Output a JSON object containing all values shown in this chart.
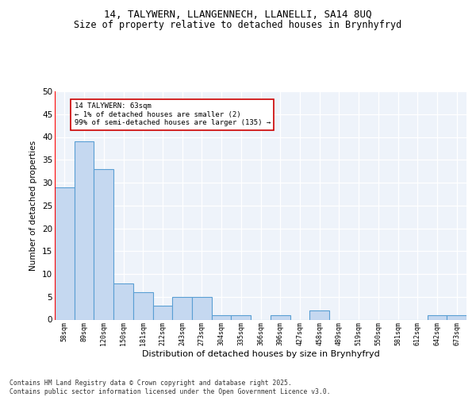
{
  "title1": "14, TALYWERN, LLANGENNECH, LLANELLI, SA14 8UQ",
  "title2": "Size of property relative to detached houses in Brynhyfryd",
  "xlabel": "Distribution of detached houses by size in Brynhyfryd",
  "ylabel": "Number of detached properties",
  "categories": [
    "58sqm",
    "89sqm",
    "120sqm",
    "150sqm",
    "181sqm",
    "212sqm",
    "243sqm",
    "273sqm",
    "304sqm",
    "335sqm",
    "366sqm",
    "396sqm",
    "427sqm",
    "458sqm",
    "489sqm",
    "519sqm",
    "550sqm",
    "581sqm",
    "612sqm",
    "642sqm",
    "673sqm"
  ],
  "values": [
    29,
    39,
    33,
    8,
    6,
    3,
    5,
    5,
    1,
    1,
    0,
    1,
    0,
    2,
    0,
    0,
    0,
    0,
    0,
    1,
    1
  ],
  "bar_color": "#c5d8f0",
  "bar_edge_color": "#5a9fd4",
  "bar_linewidth": 0.8,
  "ylim": [
    0,
    50
  ],
  "yticks": [
    0,
    5,
    10,
    15,
    20,
    25,
    30,
    35,
    40,
    45,
    50
  ],
  "annotation_text": "14 TALYWERN: 63sqm\n← 1% of detached houses are smaller (2)\n99% of semi-detached houses are larger (135) →",
  "annotation_box_color": "#ffffff",
  "annotation_box_edgecolor": "#cc0000",
  "annotation_fontsize": 6.5,
  "bg_color": "#eef3fa",
  "footer_text": "Contains HM Land Registry data © Crown copyright and database right 2025.\nContains public sector information licensed under the Open Government Licence v3.0.",
  "title_fontsize": 9,
  "subtitle_fontsize": 8.5,
  "xlabel_fontsize": 8,
  "ylabel_fontsize": 7.5
}
